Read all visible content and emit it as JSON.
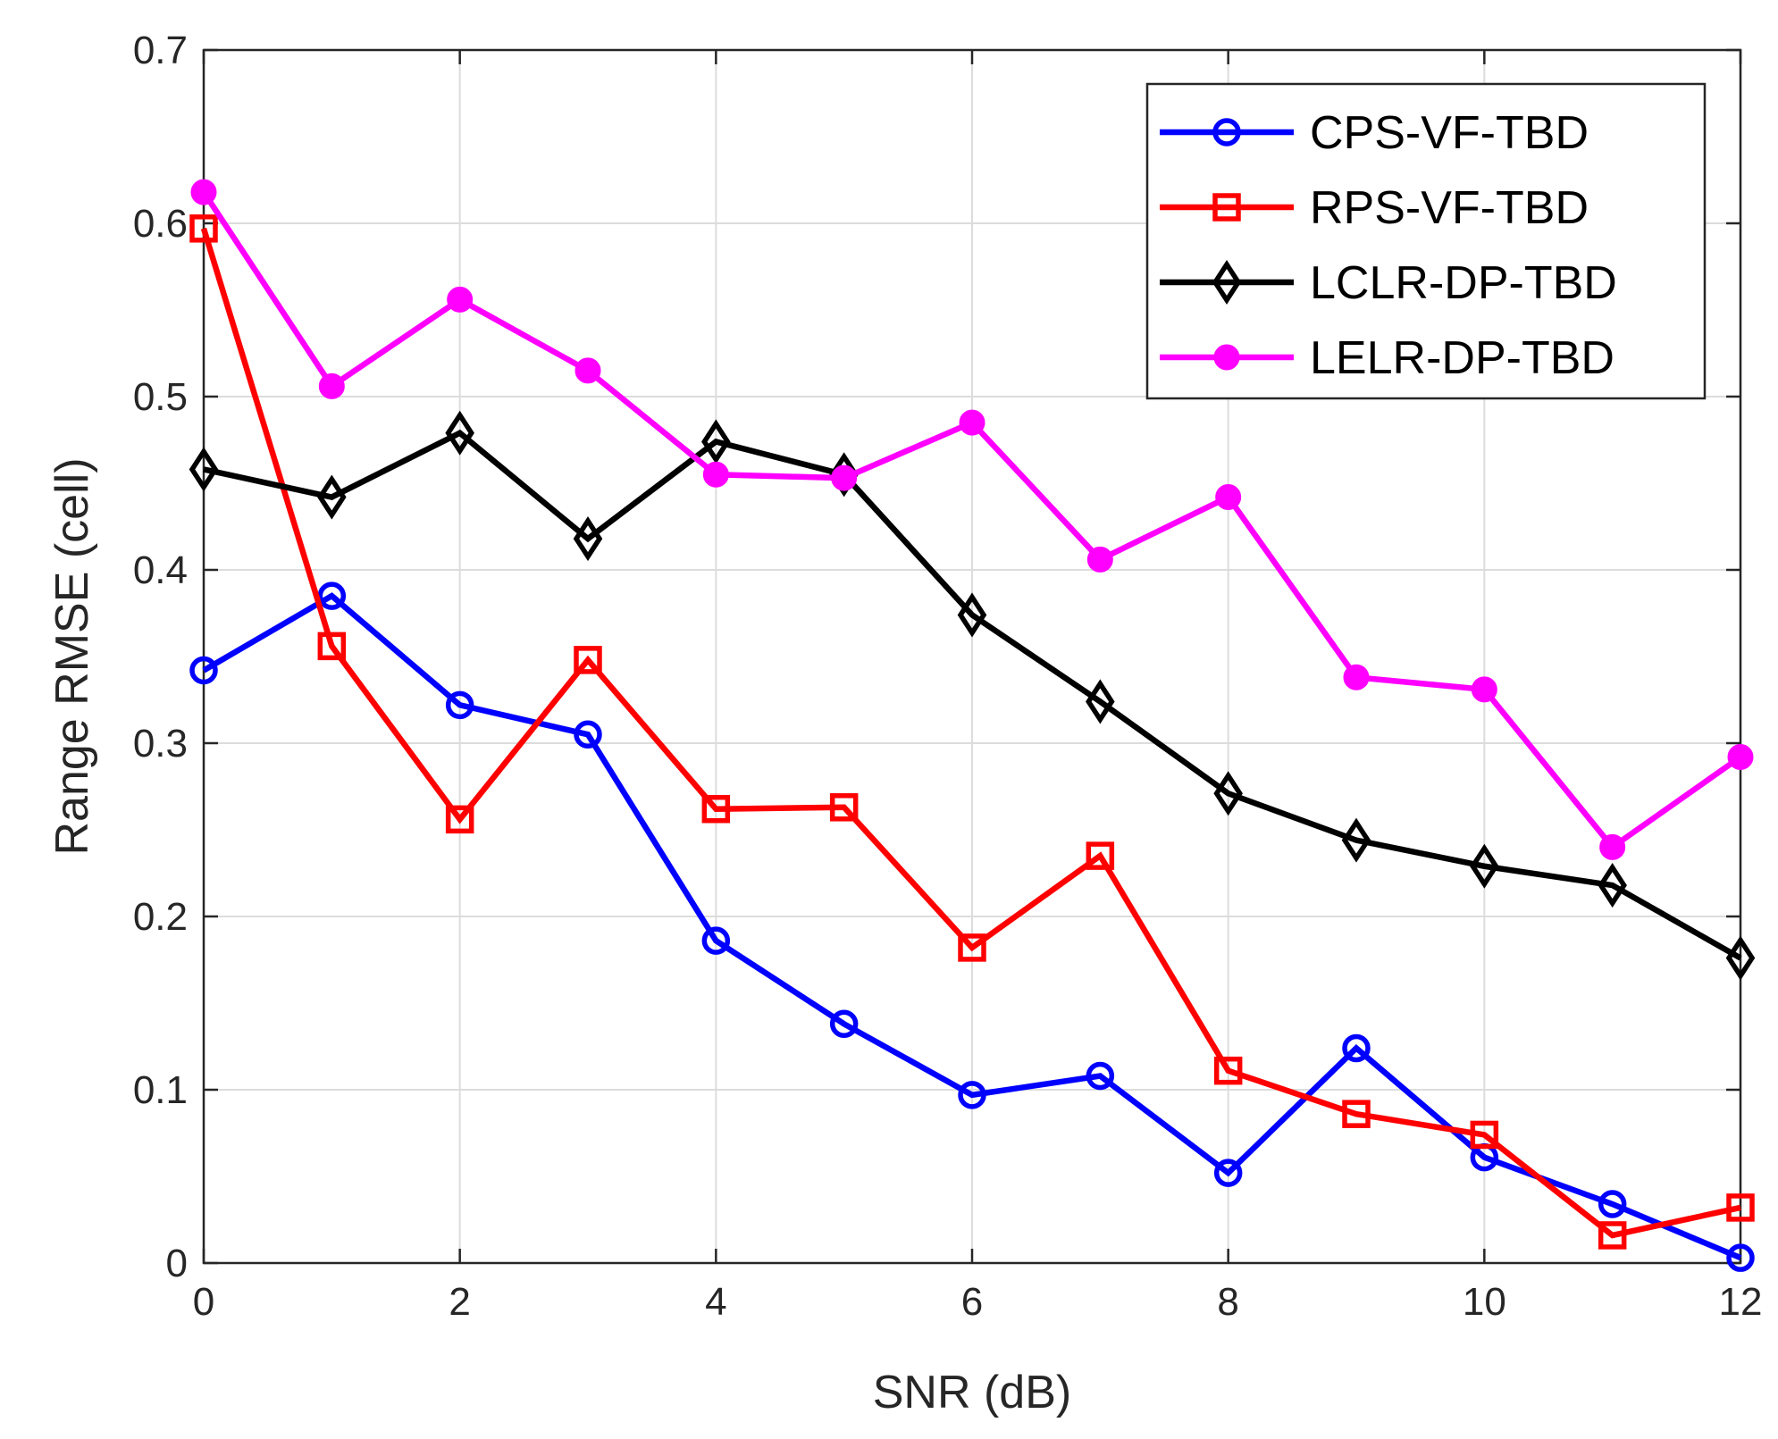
{
  "chart_data": {
    "type": "line",
    "title": "",
    "xlabel": "SNR (dB)",
    "ylabel": "Range RMSE (cell)",
    "xlim": [
      0,
      12
    ],
    "ylim": [
      0,
      0.7
    ],
    "grid": true,
    "legend_position": "top-right",
    "x": [
      0,
      1,
      2,
      3,
      4,
      5,
      6,
      7,
      8,
      9,
      10,
      11,
      12
    ],
    "xticks": [
      "0",
      "2",
      "4",
      "6",
      "8",
      "10",
      "12"
    ],
    "yticks": [
      "0",
      "0.1",
      "0.2",
      "0.3",
      "0.4",
      "0.5",
      "0.6",
      "0.7"
    ],
    "series": [
      {
        "name": "CPS-VF-TBD",
        "color": "#0000ff",
        "marker": "circle",
        "values": [
          0.342,
          0.385,
          0.322,
          0.305,
          0.186,
          0.138,
          0.097,
          0.108,
          0.052,
          0.124,
          0.061,
          0.034,
          0.003
        ]
      },
      {
        "name": "RPS-VF-TBD",
        "color": "#ff0000",
        "marker": "square",
        "values": [
          0.597,
          0.356,
          0.256,
          0.348,
          0.262,
          0.263,
          0.182,
          0.235,
          0.111,
          0.086,
          0.074,
          0.016,
          0.032
        ]
      },
      {
        "name": "LCLR-DP-TBD",
        "color": "#000000",
        "marker": "diamond",
        "values": [
          0.458,
          0.442,
          0.479,
          0.418,
          0.474,
          0.455,
          0.374,
          0.324,
          0.271,
          0.244,
          0.229,
          0.218,
          0.176
        ]
      },
      {
        "name": "LELR-DP-TBD",
        "color": "#ff00ff",
        "marker": "filled-circle",
        "values": [
          0.618,
          0.506,
          0.556,
          0.515,
          0.455,
          0.453,
          0.485,
          0.406,
          0.442,
          0.338,
          0.331,
          0.24,
          0.292
        ]
      }
    ]
  }
}
